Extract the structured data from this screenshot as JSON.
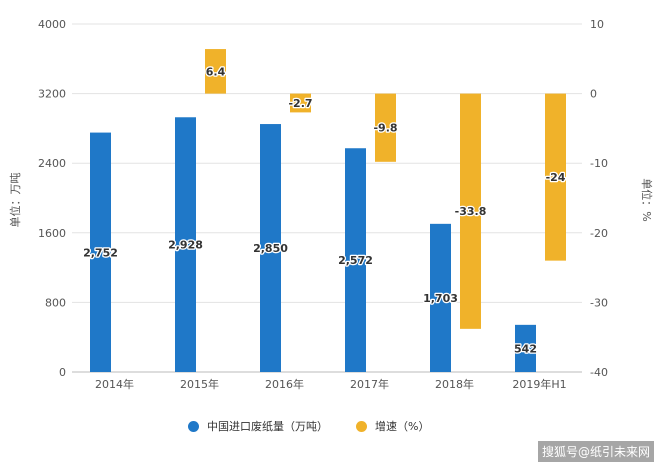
{
  "chart_data": {
    "type": "bar",
    "categories": [
      "2014年",
      "2015年",
      "2016年",
      "2017年",
      "2018年",
      "2019年H1"
    ],
    "series": [
      {
        "name": "中国进口废纸量（万吨）",
        "axis": "left",
        "color": "#1f78c8",
        "values": [
          2752,
          2928,
          2850,
          2572,
          1703,
          542
        ],
        "labels": [
          "2,752",
          "2,928",
          "2,850",
          "2,572",
          "1,703",
          "542"
        ]
      },
      {
        "name": "增速（%）",
        "axis": "right",
        "color": "#f0b22a",
        "values": [
          null,
          6.4,
          -2.7,
          -9.8,
          -33.8,
          -24
        ],
        "labels": [
          "",
          "6.4",
          "-2.7",
          "-9.8",
          "-33.8",
          "-24"
        ]
      }
    ],
    "ylabel": "单位：万吨",
    "ylabel_right": "单位：%",
    "ylim": [
      0,
      4000
    ],
    "ylim_right": [
      -40,
      10
    ],
    "yticks": [
      0,
      800,
      1600,
      2400,
      3200,
      4000
    ],
    "yticks_right": [
      -40,
      -30,
      -20,
      -10,
      0,
      10
    ],
    "grid": true,
    "legend": "bottom-center"
  },
  "source_text": "搜狐号@纸引未来网"
}
